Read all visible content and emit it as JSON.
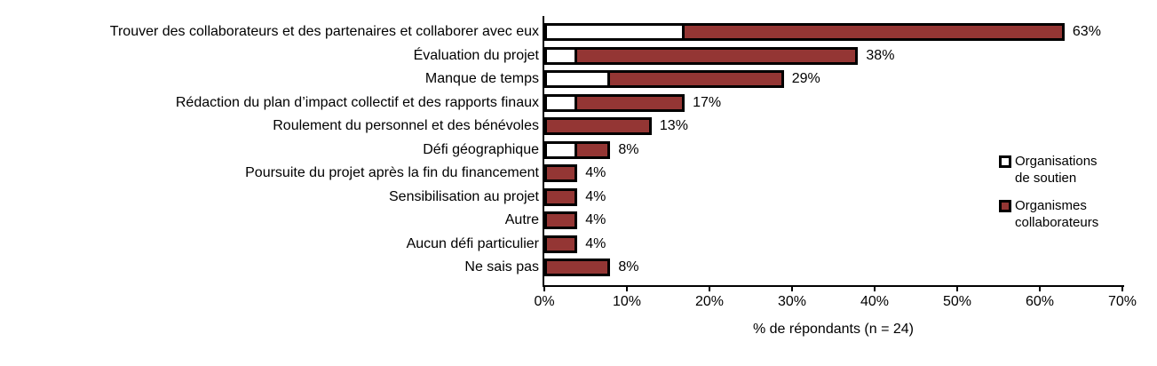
{
  "chart_data": {
    "type": "bar",
    "orientation": "horizontal",
    "title": "",
    "xlabel": "% de répondants (n = 24)",
    "ylabel": "",
    "xlim": [
      0,
      70
    ],
    "x_ticks": [
      "0%",
      "10%",
      "20%",
      "30%",
      "40%",
      "50%",
      "60%",
      "70%"
    ],
    "grid": false,
    "legend_position": "inside-right",
    "categories": [
      "Trouver des collaborateurs et des partenaires et collaborer avec eux",
      "Évaluation du projet",
      "Manque de temps",
      "Rédaction du plan d’impact collectif et des rapports finaux",
      "Roulement du personnel et des bénévoles",
      "Défi géographique",
      "Poursuite du projet après la fin du financement",
      "Sensibilisation au projet",
      "Autre",
      "Aucun défi particulier",
      "Ne sais pas"
    ],
    "series": [
      {
        "name": "Organisations de soutien",
        "legend_lines": [
          "Organisations",
          "de soutien"
        ],
        "color": "#FFFFFF",
        "values": [
          17,
          4,
          8,
          4,
          0,
          4,
          0,
          0,
          0,
          0,
          0
        ]
      },
      {
        "name": "Organismes collaborateurs",
        "legend_lines": [
          "Organismes",
          "collaborateurs"
        ],
        "color": "#943634",
        "values": [
          63,
          38,
          29,
          17,
          13,
          8,
          4,
          4,
          4,
          4,
          8
        ]
      }
    ],
    "bar_labels": [
      "63%",
      "38%",
      "29%",
      "17%",
      "13%",
      "8%",
      "4%",
      "4%",
      "4%",
      "4%",
      "8%"
    ],
    "outline_color": "#000000"
  }
}
